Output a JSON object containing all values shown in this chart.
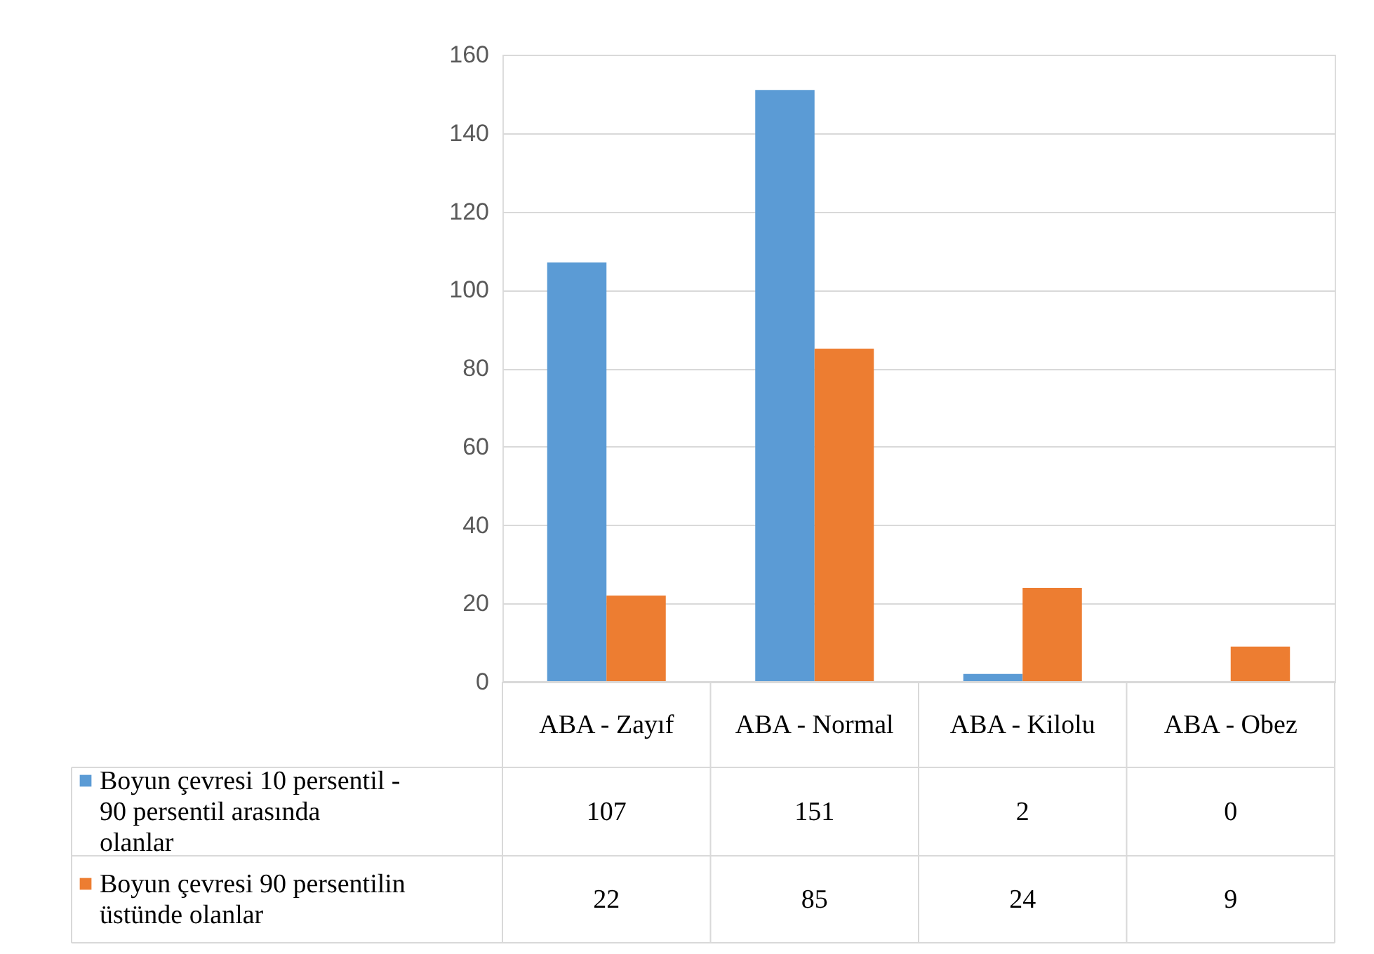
{
  "chart_data": {
    "type": "bar",
    "categories": [
      "ABA - Zayıf",
      "ABA - Normal",
      "ABA - Kilolu",
      "ABA - Obez"
    ],
    "series": [
      {
        "name": "Boyun çevresi 10 persentil - 90 persentil arasında olanlar",
        "color": "#5b9bd5",
        "values": [
          107,
          151,
          2,
          0
        ]
      },
      {
        "name": "Boyun çevresi 90 persentilin üstünde olanlar",
        "color": "#ed7d31",
        "values": [
          22,
          85,
          24,
          9
        ]
      }
    ],
    "ylim": [
      0,
      160
    ],
    "yticks": [
      0,
      20,
      40,
      60,
      80,
      100,
      120,
      140,
      160
    ],
    "grid": "y",
    "legend": "bottom",
    "data_labels": true
  }
}
